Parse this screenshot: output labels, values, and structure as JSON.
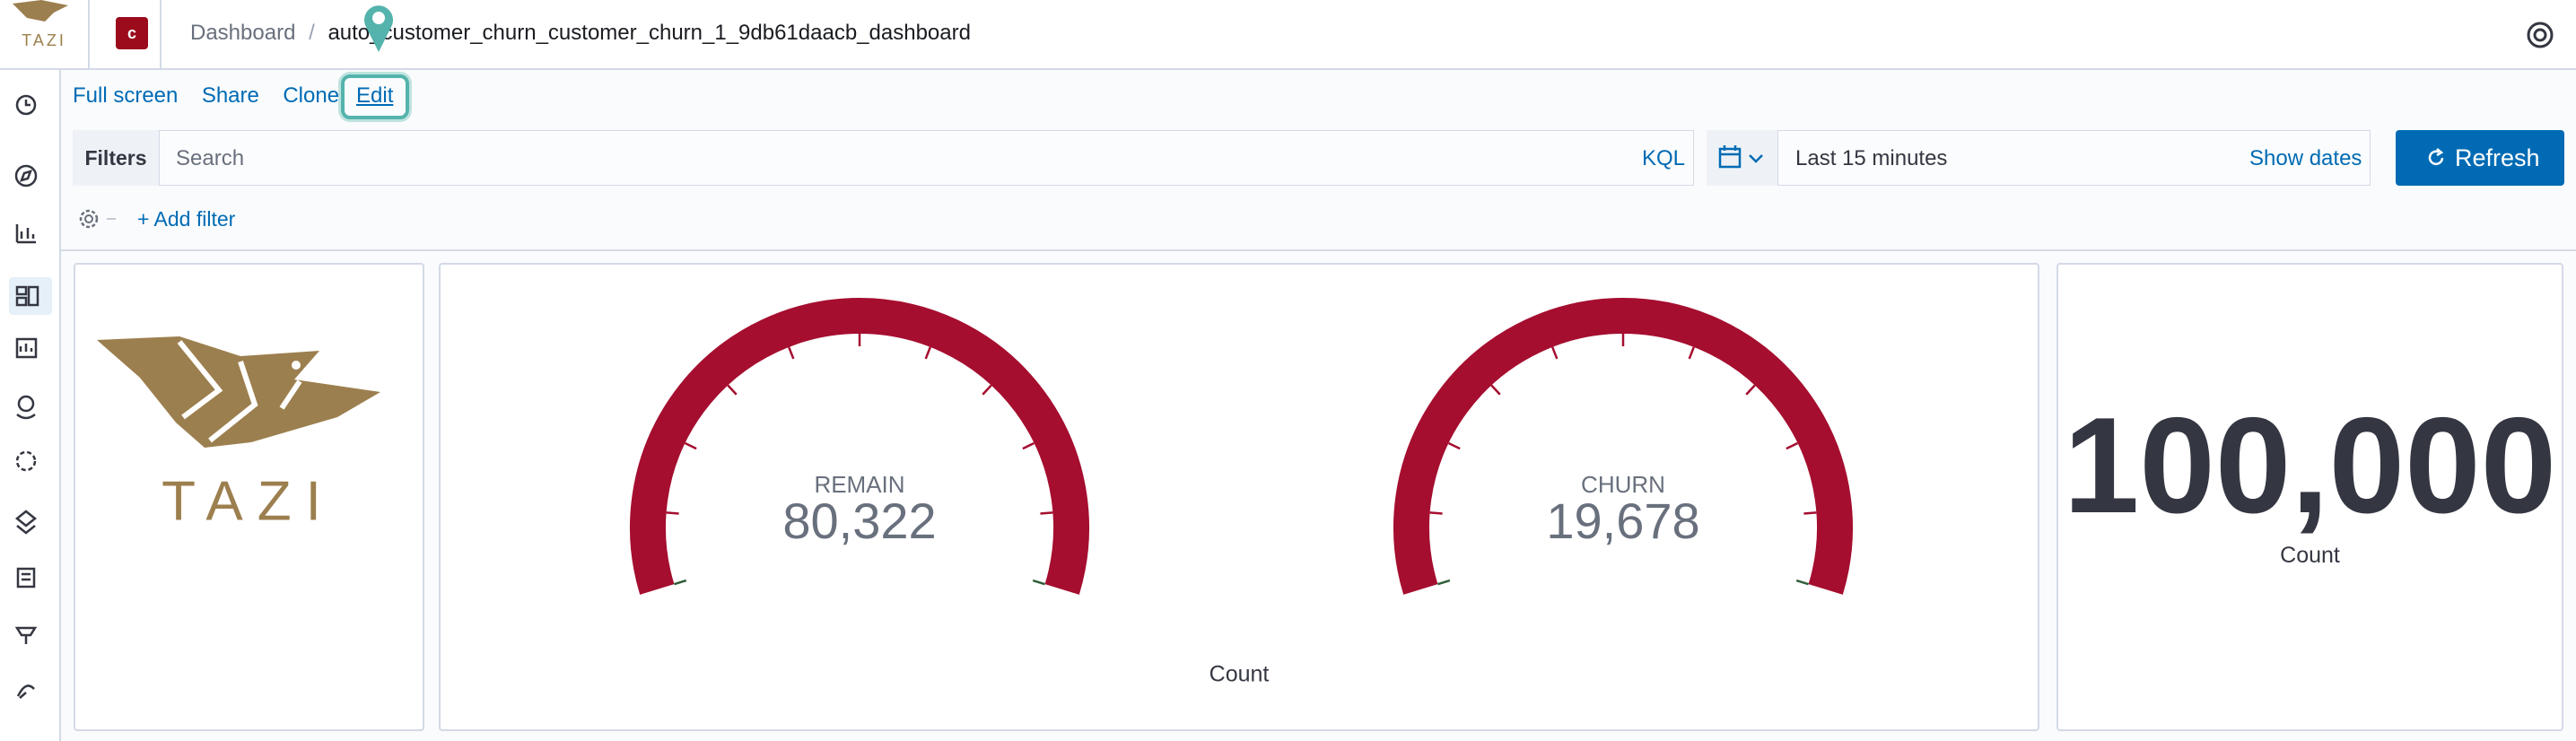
{
  "header": {
    "logo_text": "TAZI",
    "space_badge": "c",
    "breadcrumbs": [
      "Dashboard",
      "auto_customer_churn_customer_churn_1_9db61daacb_dashboard"
    ]
  },
  "menu": [
    "Full screen",
    "Share",
    "Clone",
    "Edit"
  ],
  "query_bar": {
    "filters_label": "Filters",
    "search_placeholder": "Search",
    "language": "KQL",
    "time_range": "Last 15 minutes",
    "show_dates": "Show dates",
    "refresh": "Refresh",
    "add_filter": "+ Add filter"
  },
  "panels": {
    "logo_text": "TAZI",
    "gauges": [
      {
        "label": "REMAIN",
        "value": 80322,
        "value_label": "80,322"
      },
      {
        "label": "CHURN",
        "value": 19678,
        "value_label": "19,678"
      }
    ],
    "gauge_axis_label": "Count",
    "metric": {
      "value": 100000,
      "value_label": "100,000",
      "label": "Count"
    }
  }
}
